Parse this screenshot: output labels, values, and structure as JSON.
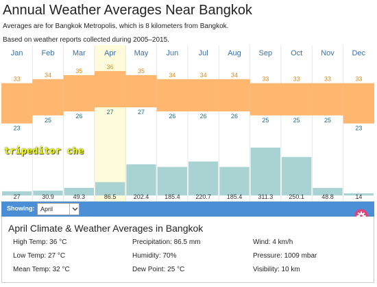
{
  "header": {
    "title": "Annual Weather Averages Near Bangkok",
    "subtitle_1": "Averages are for Bangkok Metropolis, which is 8 kilometers from Bangkok.",
    "subtitle_2": "Based on weather reports collected during 2005–2015."
  },
  "watermark": "tripeditor che",
  "showing": {
    "label": "Showing:",
    "selected": "April"
  },
  "details": {
    "title": "April Climate & Weather Averages in Bangkok",
    "stats": {
      "high_temp": "High Temp: 36 °C",
      "low_temp": "Low Temp: 27 °C",
      "mean_temp": "Mean Temp: 32 °C",
      "precipitation": "Precipitation: 86.5 mm",
      "humidity": "Humidity: 70%",
      "dew_point": "Dew Point: 25 °C",
      "wind": "Wind: 4 km/h",
      "pressure": "Pressure: 1009 mbar",
      "visibility": "Visibility: 10 km"
    }
  },
  "colors": {
    "temp_band": "#ffb770",
    "precip": "#a9d3d3",
    "highlight": "#fdfbd9",
    "accent_bar": "#4a8fd6",
    "gear": "#e0457b"
  },
  "icons": {
    "select_arrow": "chevron-down-icon",
    "settings": "gear-icon"
  },
  "chart_data": {
    "type": "bar",
    "categories": [
      "Jan",
      "Feb",
      "Mar",
      "Apr",
      "May",
      "Jun",
      "Jul",
      "Aug",
      "Sep",
      "Oct",
      "Nov",
      "Dec"
    ],
    "highlighted_category": "Apr",
    "series": [
      {
        "values": [
          33,
          34,
          35,
          36,
          35,
          34,
          34,
          34,
          33,
          33,
          33,
          33
        ]
      },
      {
        "values": [
          23,
          25,
          26,
          27,
          27,
          26,
          26,
          26,
          25,
          25,
          25,
          23
        ]
      },
      {
        "values": [
          27,
          30.9,
          49.3,
          86.5,
          202.4,
          185.4,
          220.7,
          185.4,
          311.3,
          250.1,
          48.8,
          14
        ]
      }
    ],
    "grid": true
  }
}
